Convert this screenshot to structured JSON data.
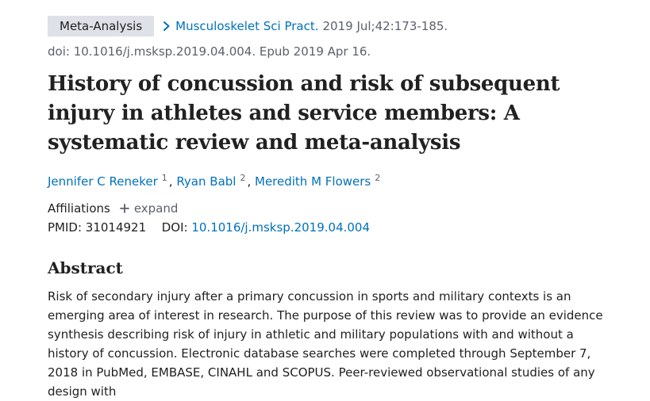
{
  "citation": {
    "type_badge": "Meta-Analysis",
    "journal": "Musculoskelet Sci Pract.",
    "details": "2019 Jul;42:173-185.",
    "doi_epub": "doi: 10.1016/j.msksp.2019.04.004. Epub 2019 Apr 16."
  },
  "title": "History of concussion and risk of subsequent injury in athletes and service members: A systematic review and meta-analysis",
  "authors": [
    {
      "name": "Jennifer C Reneker",
      "affiliation": "1"
    },
    {
      "name": "Ryan Babl",
      "affiliation": "2"
    },
    {
      "name": "Meredith M Flowers",
      "affiliation": "2"
    }
  ],
  "affiliations": {
    "label": "Affiliations",
    "expand_label": "expand"
  },
  "identifiers": {
    "pmid_label": "PMID:",
    "pmid": "31014921",
    "doi_label": "DOI:",
    "doi": "10.1016/j.msksp.2019.04.004"
  },
  "abstract": {
    "heading": "Abstract",
    "text": "Risk of secondary injury after a primary concussion in sports and military contexts is an emerging area of interest in research. The purpose of this review was to provide an evidence synthesis describing risk of injury in athletic and military populations with and without a history of concussion. Electronic database searches were completed through September 7, 2018 in PubMed, EMBASE, CINAHL and SCOPUS. Peer-reviewed observational studies of any design with"
  },
  "colors": {
    "link": "#0071bc",
    "badge_bg": "#dfe1e8",
    "muted": "#5b616b",
    "text": "#212121"
  },
  "icons": {
    "breadcrumb": "chevron-right-icon",
    "expand": "plus-icon"
  }
}
